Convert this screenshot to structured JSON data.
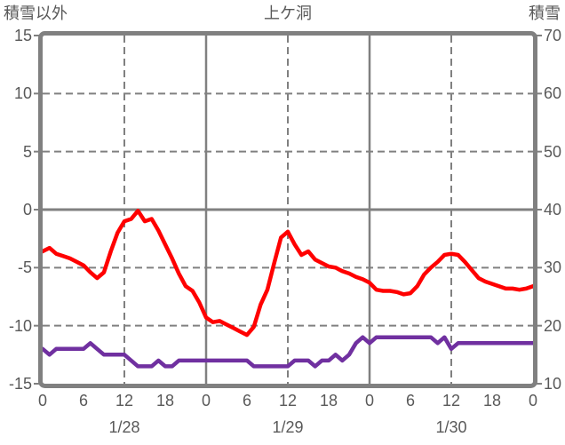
{
  "header": {
    "left_axis_title": "積雪以外",
    "chart_title": "上ケ洞",
    "right_axis_title": "積雪"
  },
  "colors": {
    "temp_line": "#ff0000",
    "snow_line": "#7030a0",
    "axis_gray": "#808080",
    "text_gray": "#595959",
    "background": "#ffffff"
  },
  "chart_data": {
    "type": "line",
    "title": "上ケ洞",
    "legend": "none",
    "grid": {
      "h_dashed_left_values": [
        10,
        5,
        -5,
        -10
      ],
      "h_solid_left_values": [
        0
      ],
      "v_dashed_hours": [
        12,
        36,
        60
      ],
      "v_solid_hours": [
        24,
        48
      ]
    },
    "left_axis": {
      "label": "積雪以外",
      "ticks": [
        15,
        10,
        5,
        0,
        -5,
        -10,
        -15
      ],
      "range": [
        -15,
        15
      ]
    },
    "right_axis": {
      "label": "積雪",
      "ticks": [
        70,
        60,
        50,
        40,
        30,
        20,
        10
      ],
      "range": [
        10,
        70
      ]
    },
    "x_axis": {
      "hours_total": 72,
      "tick_step_hours": 6,
      "hour_tick_labels": [
        "0",
        "6",
        "12",
        "18",
        "0",
        "6",
        "12",
        "18",
        "0",
        "6",
        "12",
        "18",
        "0"
      ],
      "date_labels": [
        "1/28",
        "1/29",
        "1/30"
      ],
      "date_label_hours": [
        12,
        36,
        60
      ]
    },
    "series": [
      {
        "name": "積雪",
        "axis": "right",
        "color": "#7030a0",
        "values": [
          16,
          15,
          16,
          16,
          16,
          16,
          16,
          17,
          16,
          15,
          15,
          15,
          15,
          14,
          13,
          13,
          13,
          14,
          13,
          13,
          14,
          14,
          14,
          14,
          14,
          14,
          14,
          14,
          14,
          14,
          14,
          13,
          13,
          13,
          13,
          13,
          13,
          14,
          14,
          14,
          13,
          14,
          14,
          15,
          14,
          15,
          17,
          18,
          17,
          18,
          18,
          18,
          18,
          18,
          18,
          18,
          18,
          18,
          17,
          18,
          16,
          17,
          17,
          17,
          17,
          17,
          17,
          17,
          17,
          17,
          17,
          17,
          17
        ]
      },
      {
        "name": "積雪以外",
        "axis": "left",
        "color": "#ff0000",
        "values": [
          -3.6,
          -3.3,
          -3.8,
          -4.0,
          -4.2,
          -4.5,
          -4.8,
          -5.4,
          -5.9,
          -5.4,
          -3.6,
          -2.0,
          -1.0,
          -0.8,
          -0.1,
          -1.0,
          -0.8,
          -1.8,
          -3.0,
          -4.2,
          -5.5,
          -6.6,
          -7.0,
          -8.0,
          -9.3,
          -9.7,
          -9.6,
          -9.9,
          -10.2,
          -10.5,
          -10.8,
          -10.1,
          -8.2,
          -6.9,
          -4.6,
          -2.4,
          -1.9,
          -3.0,
          -3.9,
          -3.6,
          -4.3,
          -4.6,
          -4.9,
          -5.0,
          -5.3,
          -5.5,
          -5.8,
          -6.0,
          -6.3,
          -6.9,
          -7.0,
          -7.0,
          -7.1,
          -7.3,
          -7.2,
          -6.6,
          -5.6,
          -5.0,
          -4.5,
          -3.9,
          -3.8,
          -3.9,
          -4.5,
          -5.2,
          -5.9,
          -6.2,
          -6.4,
          -6.6,
          -6.8,
          -6.8,
          -6.9,
          -6.8,
          -6.6
        ]
      }
    ]
  }
}
